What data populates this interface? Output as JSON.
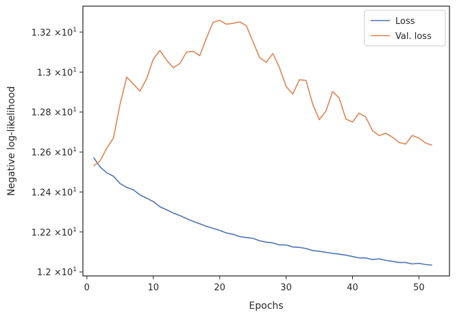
{
  "chart_data": {
    "type": "line",
    "xlabel": "Epochs",
    "ylabel": "Negative log-likelihood",
    "xlim": [
      -0.6,
      54.6
    ],
    "ylim": [
      11.98,
      13.33
    ],
    "x_ticks": [
      0,
      10,
      20,
      30,
      40,
      50
    ],
    "x_tick_labels": [
      "0",
      "10",
      "20",
      "30",
      "40",
      "50"
    ],
    "y_ticks": [
      12.0,
      12.2,
      12.4,
      12.6,
      12.8,
      13.0,
      13.2
    ],
    "y_tick_labels": [
      {
        "mantissa": "1.2",
        "exponent": "1"
      },
      {
        "mantissa": "1.22",
        "exponent": "1"
      },
      {
        "mantissa": "1.24",
        "exponent": "1"
      },
      {
        "mantissa": "1.26",
        "exponent": "1"
      },
      {
        "mantissa": "1.28",
        "exponent": "1"
      },
      {
        "mantissa": "1.3",
        "exponent": "1"
      },
      {
        "mantissa": "1.32",
        "exponent": "1"
      }
    ],
    "y_tick_times": "×10",
    "legend_position": "top-right",
    "x": [
      1,
      2,
      3,
      4,
      5,
      6,
      7,
      8,
      9,
      10,
      11,
      12,
      13,
      14,
      15,
      16,
      17,
      18,
      19,
      20,
      21,
      22,
      23,
      24,
      25,
      26,
      27,
      28,
      29,
      30,
      31,
      32,
      33,
      34,
      35,
      36,
      37,
      38,
      39,
      40,
      41,
      42,
      43,
      44,
      45,
      46,
      47,
      48,
      49,
      50,
      51,
      52
    ],
    "series": [
      {
        "name": "Loss",
        "color": "#4c72b0",
        "values": [
          12.573,
          12.525,
          12.496,
          12.479,
          12.442,
          12.423,
          12.411,
          12.385,
          12.369,
          12.352,
          12.326,
          12.311,
          12.295,
          12.282,
          12.267,
          12.253,
          12.241,
          12.228,
          12.218,
          12.208,
          12.195,
          12.188,
          12.177,
          12.172,
          12.168,
          12.156,
          12.149,
          12.145,
          12.135,
          12.135,
          12.125,
          12.123,
          12.117,
          12.107,
          12.103,
          12.098,
          12.093,
          12.089,
          12.084,
          12.077,
          12.07,
          12.07,
          12.062,
          12.065,
          12.058,
          12.053,
          12.047,
          12.047,
          12.04,
          12.043,
          12.037,
          12.034
        ]
      },
      {
        "name": "Val. loss",
        "color": "#dd8452",
        "values": [
          12.53,
          12.556,
          12.62,
          12.67,
          12.84,
          12.975,
          12.94,
          12.905,
          12.967,
          13.065,
          13.108,
          13.06,
          13.022,
          13.043,
          13.1,
          13.104,
          13.082,
          13.17,
          13.249,
          13.259,
          13.24,
          13.244,
          13.251,
          13.233,
          13.153,
          13.074,
          13.049,
          13.093,
          13.023,
          12.928,
          12.89,
          12.962,
          12.958,
          12.84,
          12.762,
          12.805,
          12.903,
          12.87,
          12.765,
          12.75,
          12.795,
          12.775,
          12.708,
          12.682,
          12.694,
          12.675,
          12.648,
          12.64,
          12.683,
          12.67,
          12.645,
          12.634
        ]
      }
    ]
  }
}
